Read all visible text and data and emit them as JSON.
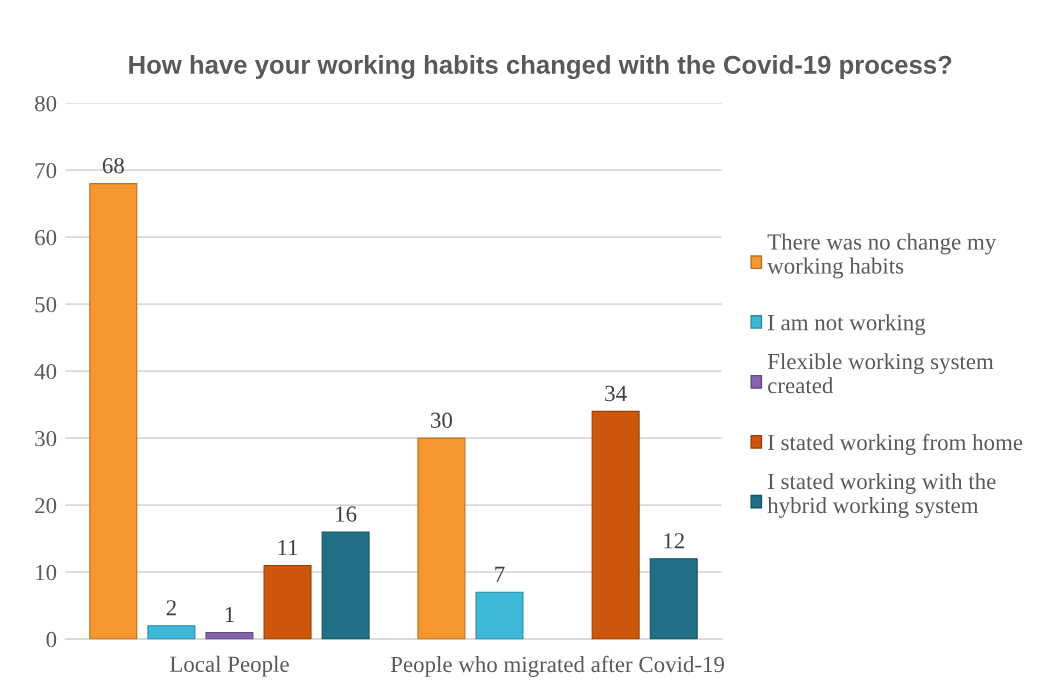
{
  "chart_data": {
    "type": "bar",
    "title": "How have your working habits changed with the Covid-19 process?",
    "categories": [
      "Local People",
      "People who migrated after Covid-19"
    ],
    "series": [
      {
        "name": "There was no change my working habits",
        "color": "#f5962e",
        "values": [
          68,
          30
        ]
      },
      {
        "name": "I am not working",
        "color": "#3db8d8",
        "values": [
          2,
          7
        ]
      },
      {
        "name": "Flexible working system created",
        "color": "#8464ac",
        "values": [
          1,
          null
        ]
      },
      {
        "name": "I stated working from home",
        "color": "#cc560c",
        "values": [
          11,
          34
        ]
      },
      {
        "name": "I stated working with the hybrid working system",
        "color": "#216f87",
        "values": [
          16,
          12
        ]
      }
    ],
    "ylim": [
      0,
      80
    ],
    "yticks": [
      0,
      10,
      20,
      30,
      40,
      50,
      60,
      70,
      80
    ],
    "grid": "y",
    "legend": "right",
    "data_labels": true
  }
}
